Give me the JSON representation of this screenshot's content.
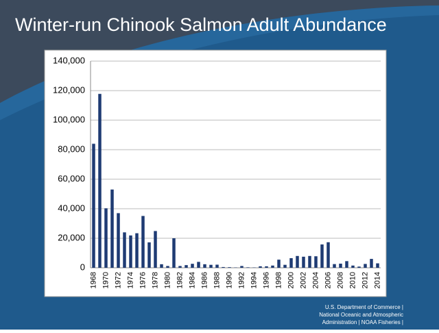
{
  "chart_data": {
    "type": "bar",
    "title": "Winter-run Chinook Salmon Adult Abundance",
    "categories": [
      "1968",
      null,
      "1970",
      null,
      "1972",
      null,
      "1974",
      null,
      "1976",
      null,
      "1978",
      null,
      "1980",
      null,
      "1982",
      null,
      "1984",
      null,
      "1986",
      null,
      "1988",
      null,
      "1990",
      null,
      "1992",
      null,
      "1994",
      null,
      "1996",
      null,
      "1998",
      null,
      "2000",
      null,
      "2002",
      null,
      "2004",
      null,
      "2006",
      null,
      "2008",
      null,
      "2010",
      null,
      "2012",
      null,
      "2014"
    ],
    "values": [
      84000,
      117800,
      40300,
      53000,
      37000,
      24000,
      21900,
      23400,
      35100,
      17200,
      24900,
      2400,
      1200,
      20000,
      1200,
      1800,
      2700,
      4000,
      2400,
      2000,
      2100,
      500,
      400,
      200,
      1200,
      300,
      200,
      1000,
      1000,
      1500,
      5500,
      2000,
      6500,
      8000,
      7500,
      8000,
      7800,
      15800,
      17300,
      2500,
      2800,
      4500,
      1500,
      800,
      2600,
      6000,
      3000
    ],
    "color": "#1f3b73",
    "ylim": [
      0,
      140000
    ],
    "yticks": [
      {
        "value": 0,
        "label": "0"
      },
      {
        "value": 20000,
        "label": "20,000"
      },
      {
        "value": 40000,
        "label": "40,000"
      },
      {
        "value": 60000,
        "label": "60,000"
      },
      {
        "value": 80000,
        "label": "80,000"
      },
      {
        "value": 100000,
        "label": "100,000"
      },
      {
        "value": 120000,
        "label": "120,000"
      },
      {
        "value": 140000,
        "label": "140,000"
      }
    ],
    "grid": true
  },
  "footer": {
    "lines": [
      "U.S. Department of Commerce |",
      "National Oceanic and Atmospheric",
      "Administration | NOAA Fisheries |"
    ]
  }
}
